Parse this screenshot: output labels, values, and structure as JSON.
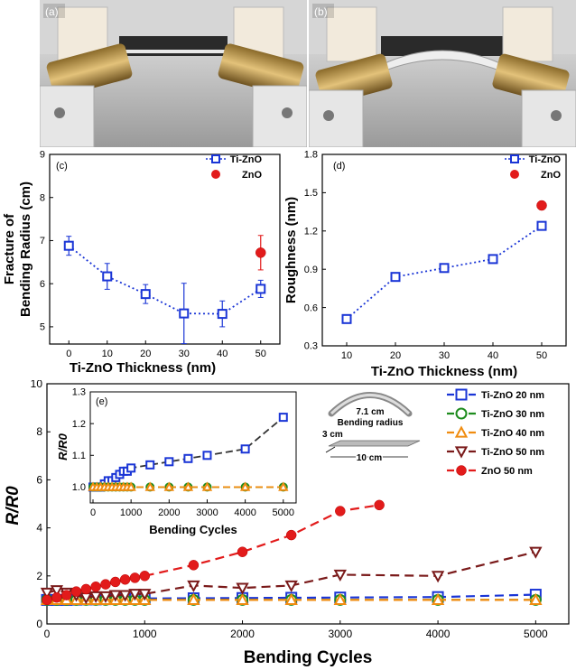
{
  "photos": [
    {
      "label": "(a)"
    },
    {
      "label": "(b)"
    }
  ],
  "chart_data": [
    {
      "panel": "(c)",
      "type": "scatter",
      "xlabel": "Ti-ZnO Thickness (nm)",
      "ylabel_line1": "Fracture of",
      "ylabel_line2": "Bending Radius (cm)",
      "xlim": [
        -5,
        55
      ],
      "ylim": [
        4.6,
        9
      ],
      "xticks": [
        0,
        10,
        20,
        30,
        40,
        50
      ],
      "yticks": [
        5,
        6,
        7,
        8,
        9
      ],
      "legend": [
        {
          "name": "Ti-ZnO"
        },
        {
          "name": "ZnO"
        }
      ],
      "series": [
        {
          "name": "Ti-ZnO",
          "x": [
            0,
            10,
            20,
            30,
            40,
            50
          ],
          "y": [
            6.88,
            6.17,
            5.76,
            5.31,
            5.3,
            5.88
          ],
          "err": [
            0.22,
            0.3,
            0.22,
            0.7,
            0.3,
            0.2
          ]
        },
        {
          "name": "ZnO",
          "x": [
            50
          ],
          "y": [
            6.72
          ],
          "err": [
            0.4
          ]
        }
      ]
    },
    {
      "panel": "(d)",
      "type": "scatter",
      "xlabel": "Ti-ZnO Thickness (nm)",
      "ylabel": "Roughness (nm)",
      "xlim": [
        5,
        55
      ],
      "ylim": [
        0.3,
        1.8
      ],
      "xticks": [
        10,
        20,
        30,
        40,
        50
      ],
      "yticks": [
        "0.3",
        "0.6",
        "0.9",
        "1.2",
        "1.5",
        "1.8"
      ],
      "legend": [
        {
          "name": "Ti-ZnO"
        },
        {
          "name": "ZnO"
        }
      ],
      "series": [
        {
          "name": "Ti-ZnO",
          "x": [
            10,
            20,
            30,
            40,
            50
          ],
          "y": [
            0.51,
            0.84,
            0.91,
            0.98,
            1.24
          ]
        },
        {
          "name": "ZnO",
          "x": [
            50
          ],
          "y": [
            1.4
          ]
        }
      ]
    },
    {
      "panel": "(e)",
      "type": "line",
      "xlabel": "Bending Cycles",
      "ylabel": "R/R0",
      "xlim": [
        0,
        5200
      ],
      "ylim": [
        0,
        10
      ],
      "xticks": [
        0,
        1000,
        2000,
        3000,
        4000,
        5000
      ],
      "yticks": [
        0,
        2,
        4,
        6,
        8,
        10
      ],
      "series": [
        {
          "name": "Ti-ZnO 20 nm",
          "color": "#1a35d6",
          "x": [
            0,
            100,
            200,
            300,
            400,
            500,
            600,
            700,
            800,
            900,
            1000,
            1500,
            2000,
            2500,
            3000,
            4000,
            5000
          ],
          "y": [
            1.0,
            1.0,
            1.0,
            1.01,
            1.02,
            1.02,
            1.03,
            1.04,
            1.05,
            1.05,
            1.06,
            1.07,
            1.08,
            1.09,
            1.1,
            1.12,
            1.22
          ]
        },
        {
          "name": "Ti-ZnO 30 nm",
          "color": "#1e8c1e",
          "x": [
            0,
            100,
            200,
            300,
            400,
            500,
            600,
            700,
            800,
            900,
            1000,
            1500,
            2000,
            2500,
            3000,
            4000,
            5000
          ],
          "y": [
            1.0,
            1.0,
            1.0,
            1.0,
            1.0,
            1.0,
            1.0,
            1.0,
            1.0,
            1.0,
            1.0,
            1.0,
            1.0,
            1.0,
            1.0,
            1.0,
            1.0
          ]
        },
        {
          "name": "Ti-ZnO 40 nm",
          "color": "#f08c10",
          "x": [
            0,
            100,
            200,
            300,
            400,
            500,
            600,
            700,
            800,
            900,
            1000,
            1500,
            2000,
            2500,
            3000,
            4000,
            5000
          ],
          "y": [
            1.0,
            1.0,
            1.0,
            1.0,
            1.0,
            1.0,
            1.0,
            1.0,
            1.0,
            1.0,
            1.0,
            1.0,
            1.0,
            1.0,
            1.0,
            1.0,
            1.0
          ]
        },
        {
          "name": "Ti-ZnO 50 nm",
          "color": "#7a1a1a",
          "x": [
            0,
            100,
            200,
            300,
            400,
            500,
            600,
            700,
            800,
            900,
            1000,
            1500,
            2000,
            2500,
            3000,
            4000,
            5000
          ],
          "y": [
            1.3,
            1.4,
            1.3,
            1.2,
            1.1,
            1.15,
            1.15,
            1.2,
            1.2,
            1.25,
            1.25,
            1.6,
            1.5,
            1.6,
            2.05,
            2.0,
            3.0
          ]
        },
        {
          "name": "ZnO 50 nm",
          "color": "#e21b1b",
          "x": [
            0,
            100,
            200,
            300,
            400,
            500,
            600,
            700,
            800,
            900,
            1000,
            1500,
            2000,
            2500,
            3000,
            3400
          ],
          "y": [
            1.0,
            1.1,
            1.2,
            1.35,
            1.45,
            1.55,
            1.65,
            1.75,
            1.85,
            1.92,
            2.0,
            2.45,
            3.0,
            3.7,
            4.7,
            4.95
          ]
        }
      ],
      "inset": {
        "xlabel": "Bending Cycles",
        "ylabel": "R/R0",
        "xlim": [
          0,
          5100
        ],
        "ylim": [
          0.95,
          1.3
        ],
        "xticks": [
          0,
          1000,
          2000,
          3000,
          4000,
          5000
        ],
        "yticks": [
          "1.0",
          "1.1",
          "1.2",
          "1.3"
        ]
      },
      "annotation": {
        "radius_value": "7.1 cm",
        "radius_text": "Bending radius",
        "height_text": "3 cm",
        "length_text": "10 cm"
      }
    }
  ]
}
